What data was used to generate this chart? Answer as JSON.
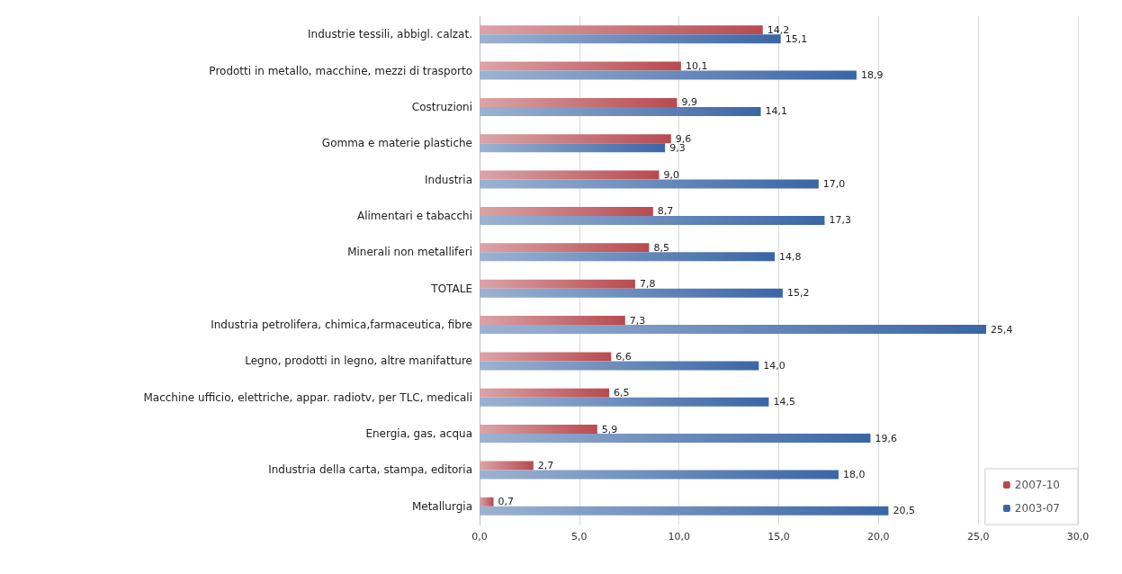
{
  "chart_data": {
    "type": "bar",
    "orientation": "horizontal",
    "categories": [
      "Industrie tessili, abbigl. calzat.",
      "Prodotti in metallo, macchine, mezzi di trasporto",
      "Costruzioni",
      "Gomma e materie plastiche",
      "Industria",
      "Alimentari e tabacchi",
      "Minerali non metalliferi",
      "TOTALE",
      "Industria petrolifera, chimica,farmaceutica, fibre",
      "Legno, prodotti in legno, altre manifatture",
      "Macchine ufficio, elettriche, appar. radiotv, per TLC, medicali",
      "Energia, gas, acqua",
      "Industria della carta, stampa, editoria",
      "Metallurgia"
    ],
    "series": [
      {
        "name": "2007-10",
        "color": "#b84a4f",
        "values": [
          14.2,
          10.1,
          9.9,
          9.6,
          9.0,
          8.7,
          8.5,
          7.8,
          7.3,
          6.6,
          6.5,
          5.9,
          2.7,
          0.7
        ],
        "value_labels": [
          "14,2",
          "10,1",
          "9,9",
          "9,6",
          "9,0",
          "8,7",
          "8,5",
          "7,8",
          "7,3",
          "6,6",
          "6,5",
          "5,9",
          "2,7",
          "0,7"
        ]
      },
      {
        "name": "2003-07",
        "color": "#3a66a6",
        "values": [
          15.1,
          18.9,
          14.1,
          9.3,
          17.0,
          17.3,
          14.8,
          15.2,
          25.4,
          14.0,
          14.5,
          19.6,
          18.0,
          20.5
        ],
        "value_labels": [
          "15,1",
          "18,9",
          "14,1",
          "9,3",
          "17,0",
          "17,3",
          "14,8",
          "15,2",
          "25,4",
          "14,0",
          "14,5",
          "19,6",
          "18,0",
          "20,5"
        ]
      }
    ],
    "xlim": [
      0,
      30
    ],
    "xticks": [
      {
        "value": 0,
        "label": "0,0"
      },
      {
        "value": 5,
        "label": "5,0"
      },
      {
        "value": 10,
        "label": "10,0"
      },
      {
        "value": 15,
        "label": "15,0"
      },
      {
        "value": 20,
        "label": "20,0"
      },
      {
        "value": 25,
        "label": "25,0"
      },
      {
        "value": 30,
        "label": "30,0"
      }
    ],
    "grid": "x",
    "legend": "bottom right"
  }
}
